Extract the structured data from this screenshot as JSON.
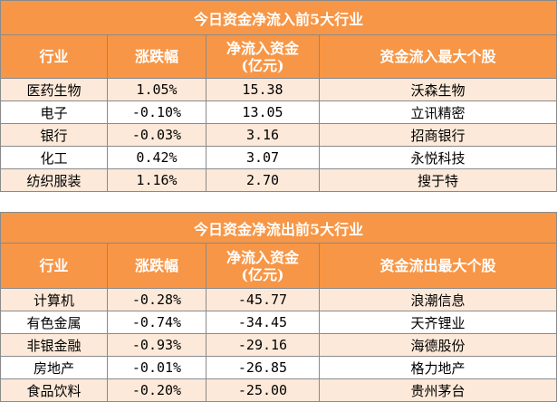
{
  "inflow": {
    "title": "今日资金净流入前5大行业",
    "headers": [
      "行业",
      "涨跌幅",
      "净流入资金\n(亿元)",
      "资金流入最大个股"
    ],
    "rows": [
      [
        "医药生物",
        "1.05%",
        "15.38",
        "沃森生物"
      ],
      [
        "电子",
        "-0.10%",
        "13.05",
        "立讯精密"
      ],
      [
        "银行",
        "-0.03%",
        "3.16",
        "招商银行"
      ],
      [
        "化工",
        "0.42%",
        "3.07",
        "永悦科技"
      ],
      [
        "纺织服装",
        "1.16%",
        "2.70",
        "搜于特"
      ]
    ]
  },
  "outflow": {
    "title": "今日资金净流出前5大行业",
    "headers": [
      "行业",
      "涨跌幅",
      "净流入资金\n(亿元)",
      "资金流出最大个股"
    ],
    "rows": [
      [
        "计算机",
        "-0.28%",
        "-45.77",
        "浪潮信息"
      ],
      [
        "有色金属",
        "-0.74%",
        "-34.45",
        "天齐锂业"
      ],
      [
        "非银金融",
        "-0.93%",
        "-29.16",
        "海德股份"
      ],
      [
        "房地产",
        "-0.01%",
        "-26.85",
        "格力地产"
      ],
      [
        "食品饮料",
        "-0.20%",
        "-25.00",
        "贵州茅台"
      ]
    ]
  }
}
